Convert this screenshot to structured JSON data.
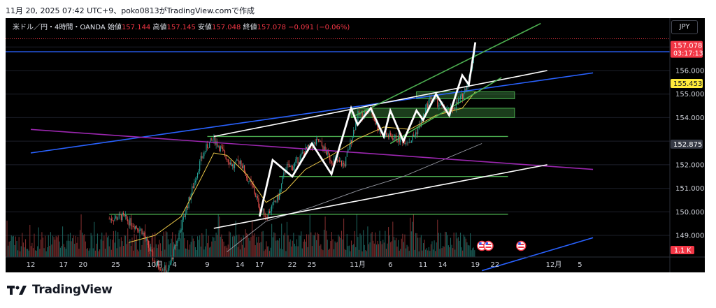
{
  "caption": "11月 20, 2025 07:42 UTC+9、poko0813がTradingView.comで作成",
  "currency_button": "JPY",
  "legend": {
    "symbol": "米ドル／円・4時間・OANDA",
    "open_label": "始値",
    "open": "157.144",
    "high_label": "高値",
    "high": "157.145",
    "low_label": "安値",
    "low": "157.048",
    "close_label": "終値",
    "close": "157.078",
    "change": "−0.091 (−0.06%)"
  },
  "footer": {
    "brand": "TradingView"
  },
  "colors": {
    "background": "#000000",
    "up": "#26a69a",
    "down": "#ef5350",
    "zone": "#4caf50",
    "blue_line": "#2962ff",
    "purple_line": "#9c27b0",
    "ma_yellow": "#e8c547",
    "price_tag": "#f23645",
    "highlight_tag": "#ffeb3b"
  },
  "chart_data": {
    "type": "candlestick",
    "symbol": "USD/JPY",
    "timeframe": "4時間",
    "y_axis": {
      "range": [
        148.5,
        157.9
      ],
      "ticks": [
        "149.000",
        "150.000",
        "151.000",
        "152.000",
        "154.000",
        "155.000",
        "156.000"
      ]
    },
    "x_axis": {
      "ticks": [
        {
          "label": "12",
          "date": "2025-09-12"
        },
        {
          "label": "17",
          "date": "2025-09-17"
        },
        {
          "label": "20",
          "date": "2025-09-20"
        },
        {
          "label": "25",
          "date": "2025-09-25"
        },
        {
          "label": "10月",
          "date": "2025-10-01"
        },
        {
          "label": "4",
          "date": "2025-10-04"
        },
        {
          "label": "9",
          "date": "2025-10-09"
        },
        {
          "label": "14",
          "date": "2025-10-14"
        },
        {
          "label": "17",
          "date": "2025-10-17"
        },
        {
          "label": "22",
          "date": "2025-10-22"
        },
        {
          "label": "25",
          "date": "2025-10-25"
        },
        {
          "label": "11月",
          "date": "2025-11-01"
        },
        {
          "label": "6",
          "date": "2025-11-06"
        },
        {
          "label": "11",
          "date": "2025-11-11"
        },
        {
          "label": "14",
          "date": "2025-11-14"
        },
        {
          "label": "19",
          "date": "2025-11-19"
        },
        {
          "label": "22",
          "date": "2025-11-22"
        },
        {
          "label": "12月",
          "date": "2025-12-01"
        },
        {
          "label": "5",
          "date": "2025-12-05"
        }
      ]
    },
    "price_path": [
      {
        "date": "2025-09-24",
        "price": 149.7
      },
      {
        "date": "2025-09-26",
        "price": 149.8
      },
      {
        "date": "2025-09-29",
        "price": 149.2
      },
      {
        "date": "2025-10-01",
        "price": 147.8
      },
      {
        "date": "2025-10-03",
        "price": 147.5
      },
      {
        "date": "2025-10-06",
        "price": 150.3
      },
      {
        "date": "2025-10-08",
        "price": 152.2
      },
      {
        "date": "2025-10-09",
        "price": 152.8
      },
      {
        "date": "2025-10-10",
        "price": 153.1
      },
      {
        "date": "2025-10-11",
        "price": 152.7
      },
      {
        "date": "2025-10-13",
        "price": 151.9
      },
      {
        "date": "2025-10-14",
        "price": 152.2
      },
      {
        "date": "2025-10-15",
        "price": 151.5
      },
      {
        "date": "2025-10-16",
        "price": 151.0
      },
      {
        "date": "2025-10-17",
        "price": 150.2
      },
      {
        "date": "2025-10-18",
        "price": 149.8
      },
      {
        "date": "2025-10-20",
        "price": 150.7
      },
      {
        "date": "2025-10-21",
        "price": 151.9
      },
      {
        "date": "2025-10-22",
        "price": 151.9
      },
      {
        "date": "2025-10-24",
        "price": 152.6
      },
      {
        "date": "2025-10-26",
        "price": 153.0
      },
      {
        "date": "2025-10-28",
        "price": 152.2
      },
      {
        "date": "2025-10-30",
        "price": 152.0
      },
      {
        "date": "2025-11-01",
        "price": 154.1
      },
      {
        "date": "2025-11-03",
        "price": 154.3
      },
      {
        "date": "2025-11-04",
        "price": 153.6
      },
      {
        "date": "2025-11-05",
        "price": 153.3
      },
      {
        "date": "2025-11-07",
        "price": 153.1
      },
      {
        "date": "2025-11-09",
        "price": 153.0
      },
      {
        "date": "2025-11-10",
        "price": 153.4
      },
      {
        "date": "2025-11-11",
        "price": 154.0
      },
      {
        "date": "2025-11-12",
        "price": 154.8
      },
      {
        "date": "2025-11-13",
        "price": 154.7
      },
      {
        "date": "2025-11-14",
        "price": 154.4
      },
      {
        "date": "2025-11-15",
        "price": 154.2
      },
      {
        "date": "2025-11-17",
        "price": 154.9
      },
      {
        "date": "2025-11-18",
        "price": 155.6
      },
      {
        "date": "2025-11-19",
        "price": 157.08
      }
    ],
    "zigzag": [
      {
        "date": "2025-10-17",
        "price": 149.8
      },
      {
        "date": "2025-10-19",
        "price": 152.2
      },
      {
        "date": "2025-10-22",
        "price": 151.5
      },
      {
        "date": "2025-10-25",
        "price": 152.9
      },
      {
        "date": "2025-10-28",
        "price": 151.6
      },
      {
        "date": "2025-10-31",
        "price": 154.4
      },
      {
        "date": "2025-11-01",
        "price": 153.7
      },
      {
        "date": "2025-11-03",
        "price": 154.4
      },
      {
        "date": "2025-11-05",
        "price": 153.2
      },
      {
        "date": "2025-11-06",
        "price": 154.3
      },
      {
        "date": "2025-11-08",
        "price": 153.0
      },
      {
        "date": "2025-11-10",
        "price": 154.3
      },
      {
        "date": "2025-11-11",
        "price": 153.9
      },
      {
        "date": "2025-11-13",
        "price": 155.0
      },
      {
        "date": "2025-11-15",
        "price": 154.1
      },
      {
        "date": "2025-11-17",
        "price": 155.8
      },
      {
        "date": "2025-11-18",
        "price": 155.4
      },
      {
        "date": "2025-11-19",
        "price": 157.2
      }
    ],
    "moving_average_yellow": [
      {
        "date": "2025-09-27",
        "price": 148.7
      },
      {
        "date": "2025-10-01",
        "price": 149.0
      },
      {
        "date": "2025-10-05",
        "price": 149.8
      },
      {
        "date": "2025-10-08",
        "price": 151.4
      },
      {
        "date": "2025-10-10",
        "price": 152.5
      },
      {
        "date": "2025-10-12",
        "price": 152.4
      },
      {
        "date": "2025-10-15",
        "price": 151.6
      },
      {
        "date": "2025-10-18",
        "price": 150.4
      },
      {
        "date": "2025-10-21",
        "price": 150.9
      },
      {
        "date": "2025-10-24",
        "price": 151.8
      },
      {
        "date": "2025-10-28",
        "price": 152.4
      },
      {
        "date": "2025-11-01",
        "price": 153.1
      },
      {
        "date": "2025-11-05",
        "price": 153.6
      },
      {
        "date": "2025-11-09",
        "price": 153.5
      },
      {
        "date": "2025-11-13",
        "price": 154.1
      },
      {
        "date": "2025-11-17",
        "price": 154.4
      },
      {
        "date": "2025-11-19",
        "price": 155.1
      }
    ],
    "moving_average_gray": [
      {
        "date": "2025-10-12",
        "price": 148.3
      },
      {
        "date": "2025-10-18",
        "price": 149.6
      },
      {
        "date": "2025-10-25",
        "price": 150.2
      },
      {
        "date": "2025-11-01",
        "price": 150.9
      },
      {
        "date": "2025-11-08",
        "price": 151.5
      },
      {
        "date": "2025-11-14",
        "price": 152.2
      },
      {
        "date": "2025-11-20",
        "price": 152.9
      }
    ],
    "horizontal_lines": [
      {
        "price": 157.35,
        "color": "#f23645",
        "style": "dotted"
      },
      {
        "price": 156.8,
        "color": "#2962ff",
        "style": "solid"
      }
    ],
    "trend_lines": [
      {
        "color": "#2962ff",
        "from": {
          "date": "2025-09-12",
          "price": 152.5
        },
        "to": {
          "date": "2025-12-07",
          "price": 155.9
        }
      },
      {
        "color": "#2962ff",
        "from": {
          "date": "2025-11-20",
          "price": 147.5
        },
        "to": {
          "date": "2025-12-07",
          "price": 148.9
        }
      },
      {
        "color": "#9c27b0",
        "from": {
          "date": "2025-09-12",
          "price": 153.5
        },
        "to": {
          "date": "2025-12-07",
          "price": 151.8
        }
      },
      {
        "color": "#ffffff",
        "from": {
          "date": "2025-10-10",
          "price": 153.2
        },
        "to": {
          "date": "2025-11-30",
          "price": 156.0
        }
      },
      {
        "color": "#ffffff",
        "from": {
          "date": "2025-10-10",
          "price": 149.3
        },
        "to": {
          "date": "2025-11-30",
          "price": 152.0
        }
      },
      {
        "color": "#4caf50",
        "from": {
          "date": "2025-10-31",
          "price": 154.0
        },
        "to": {
          "date": "2025-11-29",
          "price": 158.0
        }
      },
      {
        "color": "#4caf50",
        "from": {
          "date": "2025-11-06",
          "price": 152.9
        },
        "to": {
          "date": "2025-11-23",
          "price": 155.7
        }
      }
    ],
    "support_resistance_lines": [
      {
        "from": "2025-10-09",
        "to": "2025-11-24",
        "price": 153.2
      },
      {
        "from": "2025-10-20",
        "to": "2025-11-24",
        "price": 151.5
      },
      {
        "from": "2025-09-24",
        "to": "2025-11-24",
        "price": 149.9
      }
    ],
    "zones": [
      {
        "from": "2025-11-10",
        "to": "2025-11-25",
        "low": 154.8,
        "high": 155.1
      },
      {
        "from": "2025-10-31",
        "to": "2025-11-25",
        "low": 154.0,
        "high": 154.4
      }
    ],
    "price_labels": [
      {
        "price": 157.078,
        "text": "157.078",
        "sub": "03:17:13",
        "style": "red"
      },
      {
        "price": 155.453,
        "text": "155.453",
        "style": "yellow"
      },
      {
        "price": 152.875,
        "text": "152.875",
        "style": "gray"
      }
    ],
    "volume_label": "1.1 K"
  }
}
